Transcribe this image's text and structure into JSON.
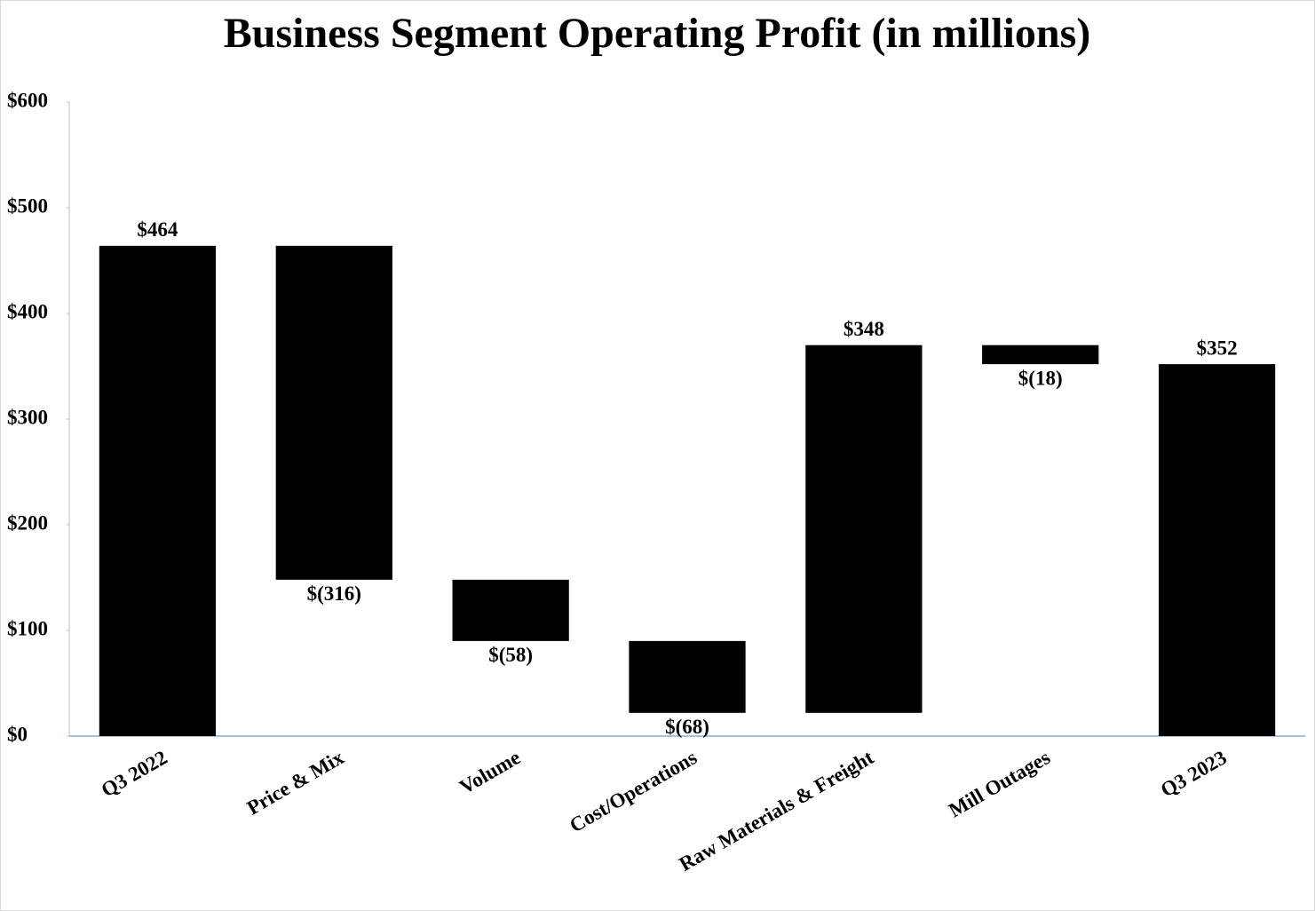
{
  "chart_data": {
    "type": "waterfall",
    "title": "Business Segment Operating Profit (in millions)",
    "categories": [
      "Q3 2022",
      "Price & Mix",
      "Volume",
      "Cost/Operations",
      "Raw Materials & Freight",
      "Mill Outages",
      "Q3 2023"
    ],
    "values": [
      464,
      -316,
      -58,
      -68,
      348,
      -18,
      352
    ],
    "value_labels": [
      "$464",
      "$(316)",
      "$(58)",
      "$(68)",
      "$348",
      "$(18)",
      "$352"
    ],
    "color": "#000000",
    "ylim": [
      0,
      600
    ],
    "yticks": [
      {
        "value": 0,
        "label": "$0"
      },
      {
        "value": 100,
        "label": "$100"
      },
      {
        "value": 200,
        "label": "$200"
      },
      {
        "value": 300,
        "label": "$300"
      },
      {
        "value": 400,
        "label": "$400"
      },
      {
        "value": 500,
        "label": "$500"
      },
      {
        "value": 600,
        "label": "$600"
      }
    ],
    "grid": false
  }
}
